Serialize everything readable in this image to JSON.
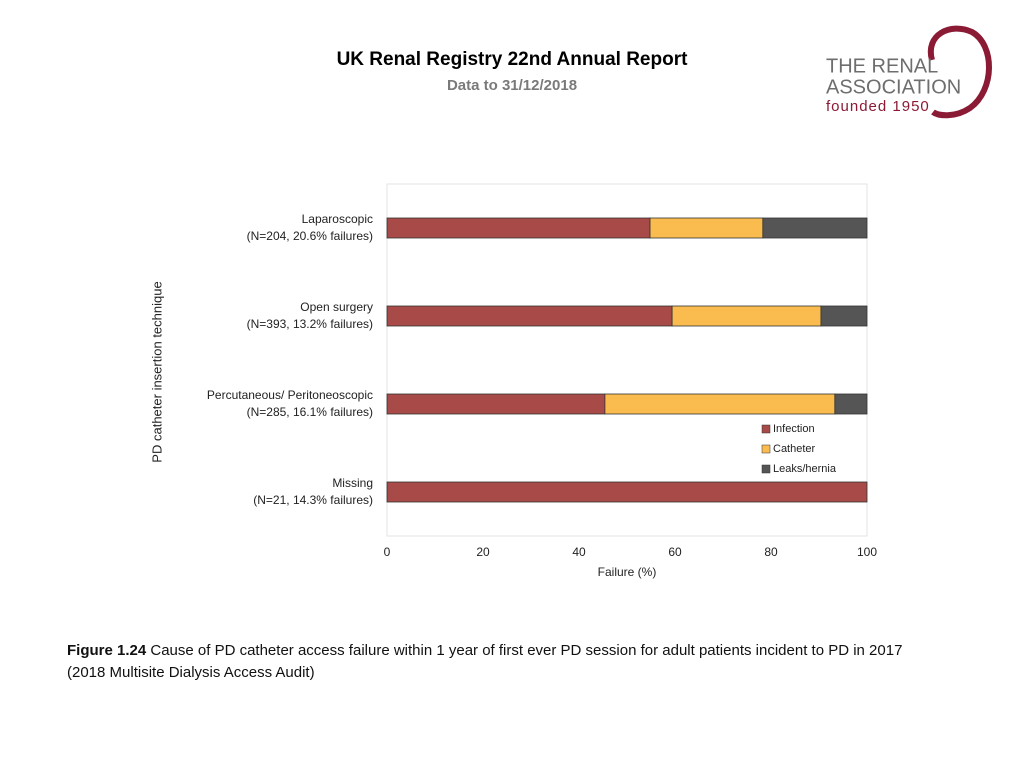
{
  "header": {
    "title": "UK Renal Registry 22nd Annual Report",
    "subtitle": "Data to 31/12/2018"
  },
  "logo": {
    "line1": "THE RENAL",
    "line2": "ASSOCIATION",
    "line3": "founded 1950"
  },
  "chart_data": {
    "type": "stacked-barh",
    "categories": [
      [
        "Laparoscopic",
        "(N=204, 20.6% failures)"
      ],
      [
        "Open surgery",
        "(N=393, 13.2% failures)"
      ],
      [
        "Percutaneous/ Peritoneoscopic",
        "(N=285, 16.1% failures)"
      ],
      [
        "Missing",
        "(N=21, 14.3% failures)"
      ]
    ],
    "series": [
      {
        "name": "Infection",
        "color": "#a84a47",
        "values": [
          54.8,
          59.4,
          45.4,
          100
        ]
      },
      {
        "name": "Catheter",
        "color": "#fbbc4f",
        "values": [
          23.5,
          31.0,
          47.9,
          0
        ]
      },
      {
        "name": "Leaks/hernia",
        "color": "#555555",
        "values": [
          21.7,
          9.6,
          6.7,
          0
        ]
      }
    ],
    "xlim": [
      0,
      100
    ],
    "xticks": [
      0,
      20,
      40,
      60,
      80,
      100
    ],
    "xlabel": "Failure (%)",
    "ylabel": "PD catheter insertion technique",
    "legend": "lower right"
  },
  "caption": {
    "label": "Figure 1.24",
    "line1": "Cause of PD catheter access failure within 1 year of first ever PD session for adult patients incident to PD in 2017",
    "line2": "(2018 Multisite Dialysis Access Audit)"
  }
}
